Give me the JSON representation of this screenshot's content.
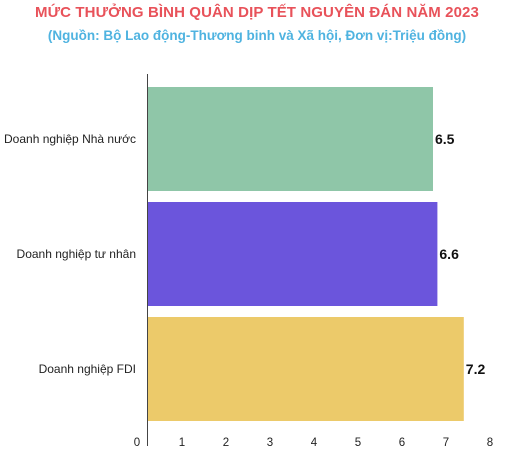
{
  "chart_data": {
    "type": "bar",
    "orientation": "horizontal",
    "title": "MỨC THƯỞNG BÌNH QUÂN DỊP TẾT NGUYÊN ĐÁN NĂM 2023",
    "subtitle": "(Nguồn: Bộ Lao động-Thương binh và Xã hội, Đơn vị:Triệu đồng)",
    "categories": [
      "Doanh nghiệp Nhà nước",
      "Doanh nghiệp tư nhân",
      "Doanh nghiệp FDI"
    ],
    "values": [
      6.5,
      6.6,
      7.2
    ],
    "data_labels": [
      "6.5",
      "6.6",
      "7.2"
    ],
    "colors": [
      "#8fc6a8",
      "#6b55dc",
      "#ecca6a"
    ],
    "xlim": [
      0,
      8
    ],
    "x_ticks": [
      "0",
      "1",
      "2",
      "3",
      "4",
      "5",
      "6",
      "7",
      "8"
    ],
    "xlabel": "",
    "ylabel": "",
    "grid": false,
    "legend": "none"
  }
}
